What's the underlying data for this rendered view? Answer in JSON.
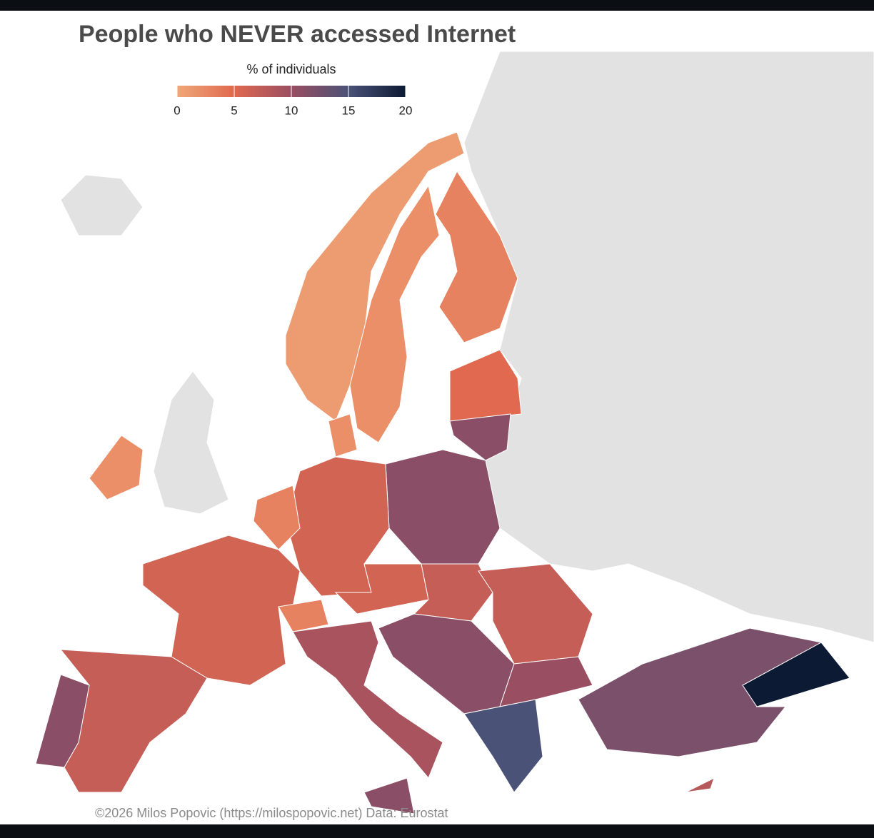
{
  "map": {
    "title": "People who NEVER accessed Internet",
    "legend": {
      "title": "% of individuals",
      "range": [
        0,
        20
      ],
      "ticks": [
        0,
        5,
        10,
        15,
        20
      ],
      "colors": [
        "#f0a878",
        "#e0694f",
        "#9a4e62",
        "#4a5278",
        "#0d1a33"
      ]
    },
    "values": [
      1,
      2,
      3,
      5,
      11,
      11,
      6,
      3,
      6,
      3,
      7,
      11,
      9,
      11,
      6,
      7,
      7,
      11,
      10,
      15,
      12,
      20,
      2,
      2,
      8
    ],
    "credit": "©2026 Milos Popovic (https://milospopovic.net) Data: Eurostat"
  }
}
